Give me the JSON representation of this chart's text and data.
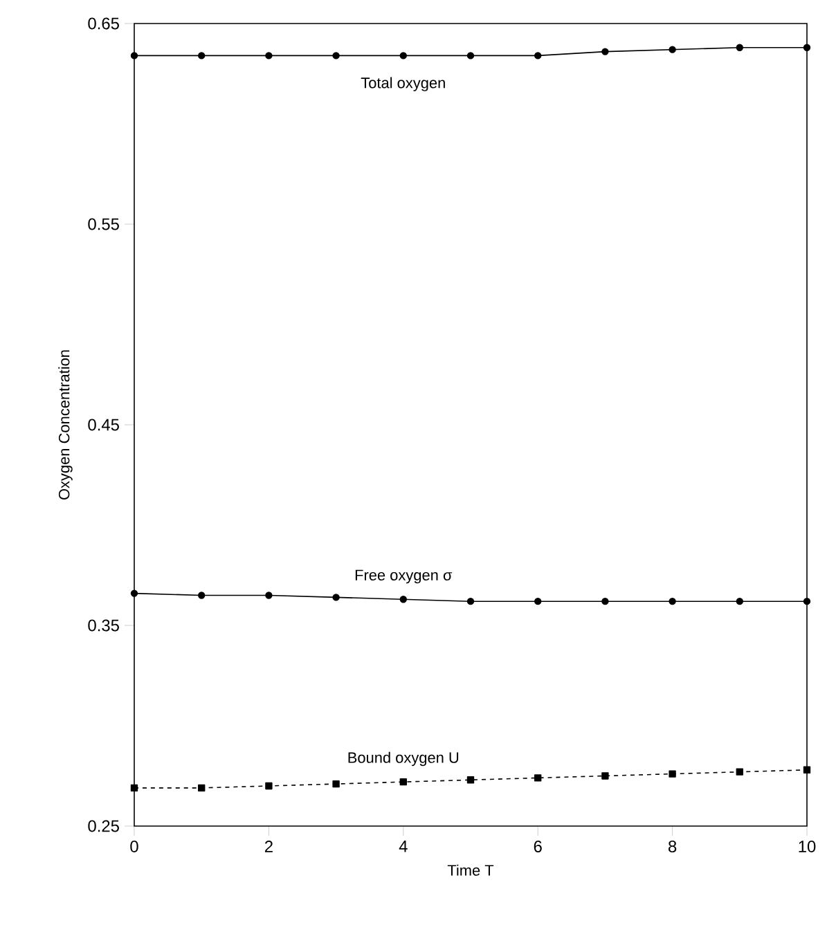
{
  "chart_data": {
    "type": "line",
    "xlabel": "Time T",
    "ylabel": "Oxygen Concentration",
    "x": [
      0,
      1,
      2,
      3,
      4,
      5,
      6,
      7,
      8,
      9,
      10
    ],
    "series": [
      {
        "name": "Total oxygen",
        "color": "#000000",
        "marker": "circle",
        "line_style": "solid",
        "values": [
          0.634,
          0.634,
          0.634,
          0.634,
          0.634,
          0.634,
          0.634,
          0.636,
          0.637,
          0.638,
          0.638
        ]
      },
      {
        "name": "Free oxygen σ",
        "color": "#000000",
        "marker": "circle",
        "line_style": "solid",
        "values": [
          0.366,
          0.365,
          0.365,
          0.364,
          0.363,
          0.362,
          0.362,
          0.362,
          0.362,
          0.362,
          0.362
        ]
      },
      {
        "name": "Bound oxygen U",
        "color": "#000000",
        "marker": "square",
        "line_style": "dashed",
        "values": [
          0.269,
          0.269,
          0.27,
          0.271,
          0.272,
          0.273,
          0.274,
          0.275,
          0.276,
          0.277,
          0.278
        ]
      }
    ],
    "xlim": [
      0,
      10
    ],
    "xticks": [
      0,
      2,
      4,
      6,
      8,
      10
    ],
    "ylim": [
      0.25,
      0.65
    ],
    "yticks": [
      0.25,
      0.35,
      0.45,
      0.55,
      0.65
    ],
    "grid": false,
    "legend": false
  }
}
